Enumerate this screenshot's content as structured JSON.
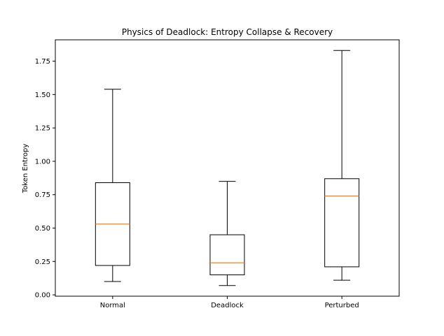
{
  "chart_data": {
    "type": "boxplot",
    "title": "Physics of Deadlock: Entropy Collapse & Recovery",
    "xlabel": "",
    "ylabel": "Token Entropy",
    "ylim": [
      -0.01,
      1.91
    ],
    "yticks": [
      0.0,
      0.25,
      0.5,
      0.75,
      1.0,
      1.25,
      1.5,
      1.75
    ],
    "ytick_labels": [
      "0.00",
      "0.25",
      "0.50",
      "0.75",
      "1.00",
      "1.25",
      "1.50",
      "1.75"
    ],
    "categories": [
      "Normal",
      "Deadlock",
      "Perturbed"
    ],
    "boxes": [
      {
        "label": "Normal",
        "whisker_low": 0.1,
        "q1": 0.22,
        "median": 0.53,
        "q3": 0.84,
        "whisker_high": 1.54
      },
      {
        "label": "Deadlock",
        "whisker_low": 0.07,
        "q1": 0.15,
        "median": 0.24,
        "q3": 0.45,
        "whisker_high": 0.85
      },
      {
        "label": "Perturbed",
        "whisker_low": 0.11,
        "q1": 0.21,
        "median": 0.74,
        "q3": 0.87,
        "whisker_high": 1.83
      }
    ],
    "colors": {
      "box": "#000000",
      "median": "#ff7f0e",
      "whisker": "#000000"
    },
    "grid": false
  }
}
